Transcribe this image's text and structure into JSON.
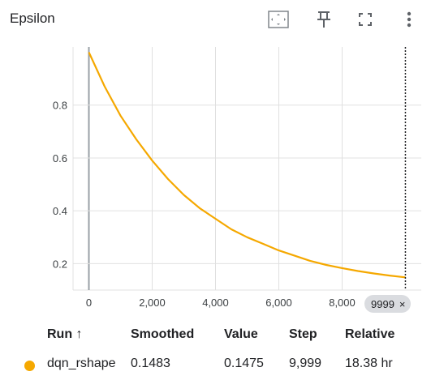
{
  "panel": {
    "title": "Epsilon",
    "icons": [
      "fit-domain-icon",
      "pin-icon",
      "fullscreen-icon",
      "more-vert-icon"
    ]
  },
  "colors": {
    "series": "#f5a800",
    "grid": "#e0e0e0",
    "hover_line": "#202124"
  },
  "chart_data": {
    "type": "line",
    "title": "Epsilon",
    "xlabel": "",
    "ylabel": "",
    "xlim": [
      -500,
      10500
    ],
    "ylim": [
      0.1,
      1.02
    ],
    "x_ticks": [
      0,
      2000,
      4000,
      6000,
      8000
    ],
    "x_tick_labels": [
      "0",
      "2,000",
      "4,000",
      "6,000",
      "8,000"
    ],
    "y_ticks": [
      0.2,
      0.4,
      0.6,
      0.8
    ],
    "y_tick_labels": [
      "0.2",
      "0.4",
      "0.6",
      "0.8"
    ],
    "grid": true,
    "series": [
      {
        "name": "dqn_rshape",
        "x": [
          0,
          500,
          1000,
          1500,
          2000,
          2500,
          3000,
          3500,
          4000,
          4500,
          5000,
          5500,
          6000,
          6500,
          7000,
          7500,
          8000,
          8500,
          9000,
          9500,
          9999
        ],
        "values": [
          1.0,
          0.87,
          0.76,
          0.67,
          0.59,
          0.52,
          0.46,
          0.41,
          0.37,
          0.33,
          0.3,
          0.275,
          0.25,
          0.23,
          0.21,
          0.195,
          0.183,
          0.172,
          0.163,
          0.155,
          0.148
        ]
      }
    ],
    "hover_step": 9999
  },
  "hover": {
    "label": "9999",
    "close": "×"
  },
  "table": {
    "headers": {
      "run": "Run ↑",
      "smoothed": "Smoothed",
      "value": "Value",
      "step": "Step",
      "relative": "Relative"
    },
    "rows": [
      {
        "run": "dqn_rshape",
        "smoothed": "0.1483",
        "value": "0.1475",
        "step": "9,999",
        "relative": "18.38 hr",
        "color": "#f5a800"
      }
    ]
  }
}
